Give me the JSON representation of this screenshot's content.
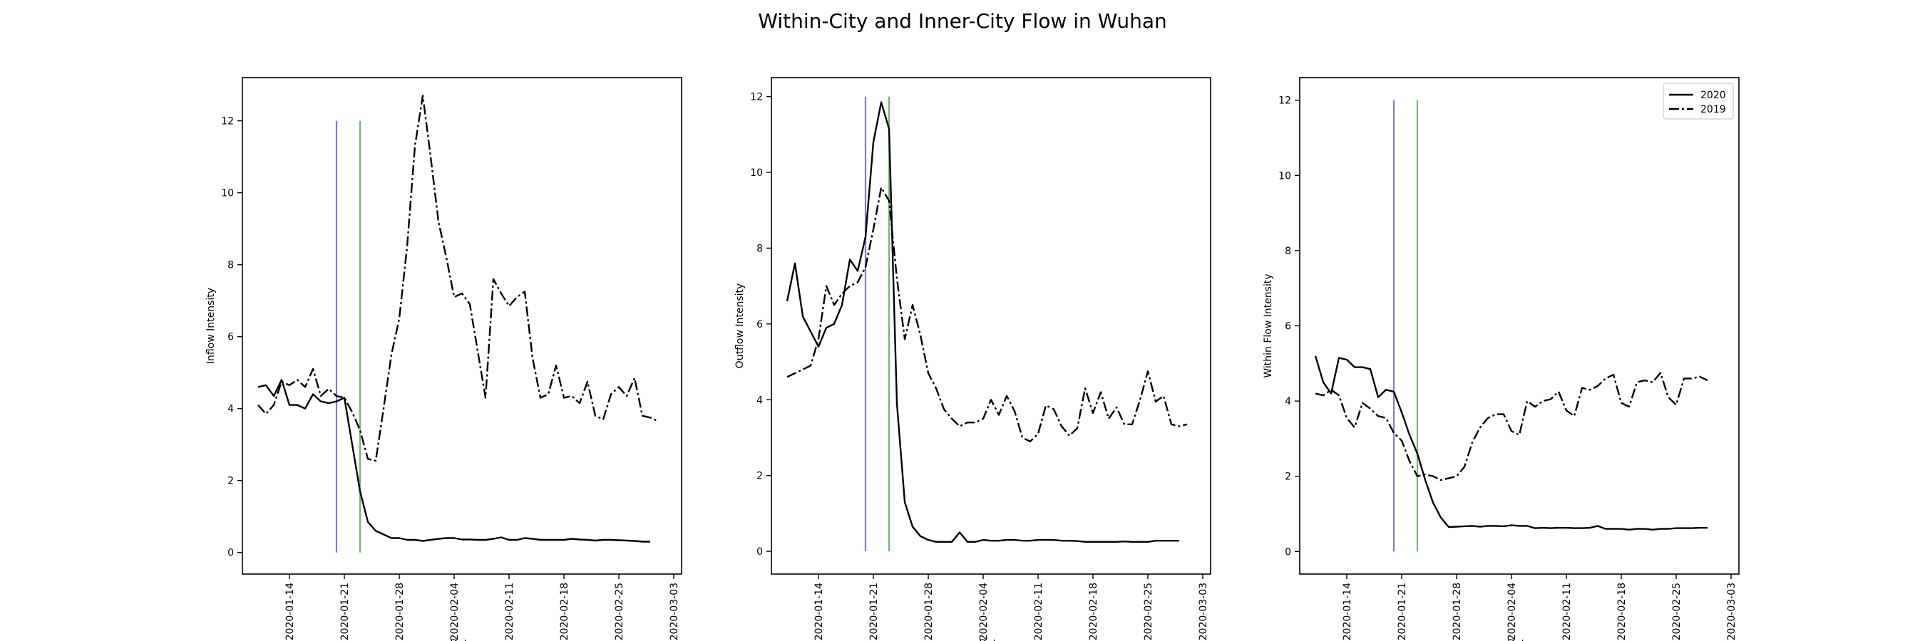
{
  "figure": {
    "title": "Within-City and Inner-City Flow in Wuhan"
  },
  "legend_placement": "top-right of third panel",
  "chart_data": [
    {
      "type": "line",
      "title": "",
      "xlabel": "Date",
      "ylabel": "Inflow Intensity",
      "x_type": "date",
      "xlim": [
        "2020-01-08",
        "2020-03-04"
      ],
      "ylim": [
        -0.6,
        13.2
      ],
      "yticks": [
        0,
        2,
        4,
        6,
        8,
        10,
        12
      ],
      "xticks": [
        "2020-01-14",
        "2020-01-21",
        "2020-01-28",
        "2020-02-04",
        "2020-02-11",
        "2020-02-18",
        "2020-02-25",
        "2020-03-03"
      ],
      "grid": false,
      "vlines": [
        {
          "x": "2020-01-20",
          "ymin": 0,
          "ymax": 12,
          "color": "#7b7be0"
        },
        {
          "x": "2020-01-23",
          "ymin": 0,
          "ymax": 12,
          "color": "#6cbb6c"
        }
      ],
      "series": [
        {
          "name": "2020",
          "style": "solid",
          "start": "2020-01-10",
          "values": [
            4.6,
            4.65,
            4.35,
            4.8,
            4.1,
            4.1,
            4.0,
            4.4,
            4.2,
            4.15,
            4.2,
            4.3,
            3.0,
            1.7,
            0.85,
            0.6,
            0.5,
            0.4,
            0.4,
            0.35,
            0.35,
            0.32,
            0.35,
            0.38,
            0.4,
            0.4,
            0.36,
            0.36,
            0.35,
            0.35,
            0.38,
            0.42,
            0.35,
            0.35,
            0.4,
            0.38,
            0.35,
            0.35,
            0.35,
            0.35,
            0.38,
            0.36,
            0.35,
            0.33,
            0.35,
            0.35,
            0.34,
            0.33,
            0.32,
            0.3,
            0.3
          ]
        },
        {
          "name": "2019",
          "style": "dashdot",
          "start": "2020-01-10",
          "values": [
            4.1,
            3.85,
            4.1,
            4.75,
            4.65,
            4.8,
            4.6,
            5.1,
            4.35,
            4.55,
            4.35,
            4.3,
            3.9,
            3.4,
            2.6,
            2.55,
            4.0,
            5.5,
            6.5,
            8.5,
            11.3,
            12.7,
            11.0,
            9.2,
            8.2,
            7.1,
            7.2,
            6.9,
            5.6,
            4.3,
            7.6,
            7.2,
            6.85,
            7.1,
            7.25,
            5.4,
            4.3,
            4.4,
            5.2,
            4.3,
            4.35,
            4.15,
            4.75,
            3.8,
            3.7,
            4.4,
            4.6,
            4.35,
            4.85,
            3.8,
            3.75,
            3.65
          ]
        }
      ]
    },
    {
      "type": "line",
      "title": "",
      "xlabel": "Date",
      "ylabel": "Outflow Intensity",
      "x_type": "date",
      "xlim": [
        "2020-01-08",
        "2020-03-04"
      ],
      "ylim": [
        -0.6,
        12.5
      ],
      "yticks": [
        0,
        2,
        4,
        6,
        8,
        10,
        12
      ],
      "xticks": [
        "2020-01-14",
        "2020-01-21",
        "2020-01-28",
        "2020-02-04",
        "2020-02-11",
        "2020-02-18",
        "2020-02-25",
        "2020-03-03"
      ],
      "grid": false,
      "vlines": [
        {
          "x": "2020-01-20",
          "ymin": 0,
          "ymax": 12,
          "color": "#7b7be0"
        },
        {
          "x": "2020-01-23",
          "ymin": 0,
          "ymax": 12,
          "color": "#6cbb6c"
        }
      ],
      "series": [
        {
          "name": "2020",
          "style": "solid",
          "start": "2020-01-10",
          "values": [
            6.6,
            7.6,
            6.2,
            5.8,
            5.4,
            5.9,
            6.0,
            6.5,
            7.7,
            7.4,
            8.3,
            10.8,
            11.85,
            11.15,
            3.9,
            1.3,
            0.65,
            0.4,
            0.3,
            0.25,
            0.25,
            0.25,
            0.5,
            0.25,
            0.25,
            0.3,
            0.28,
            0.28,
            0.3,
            0.3,
            0.28,
            0.28,
            0.3,
            0.3,
            0.3,
            0.28,
            0.28,
            0.27,
            0.25,
            0.25,
            0.25,
            0.25,
            0.25,
            0.26,
            0.25,
            0.25,
            0.25,
            0.28,
            0.28,
            0.28,
            0.28
          ]
        },
        {
          "name": "2019",
          "style": "dashdot",
          "start": "2020-01-10",
          "values": [
            4.6,
            4.7,
            4.8,
            4.9,
            5.6,
            7.0,
            6.5,
            6.8,
            7.0,
            7.1,
            7.5,
            8.5,
            9.6,
            9.25,
            7.2,
            5.6,
            6.5,
            5.7,
            4.7,
            4.3,
            3.75,
            3.5,
            3.3,
            3.4,
            3.4,
            3.5,
            4.0,
            3.6,
            4.1,
            3.7,
            3.0,
            2.9,
            3.1,
            3.85,
            3.75,
            3.3,
            3.05,
            3.25,
            4.3,
            3.65,
            4.2,
            3.5,
            3.8,
            3.35,
            3.35,
            4.0,
            4.75,
            3.95,
            4.1,
            3.35,
            3.3,
            3.35
          ]
        }
      ]
    },
    {
      "type": "line",
      "title": "",
      "xlabel": "Date",
      "ylabel": "Within Flow Intensity",
      "x_type": "date",
      "xlim": [
        "2020-01-08",
        "2020-03-04"
      ],
      "ylim": [
        -0.6,
        12.6
      ],
      "yticks": [
        0,
        2,
        4,
        6,
        8,
        10,
        12
      ],
      "xticks": [
        "2020-01-14",
        "2020-01-21",
        "2020-01-28",
        "2020-02-04",
        "2020-02-11",
        "2020-02-18",
        "2020-02-25",
        "2020-03-03"
      ],
      "grid": false,
      "legend": {
        "placement": "upper right",
        "entries": [
          "2020",
          "2019"
        ]
      },
      "vlines": [
        {
          "x": "2020-01-20",
          "ymin": 0,
          "ymax": 12,
          "color": "#7b7be0"
        },
        {
          "x": "2020-01-23",
          "ymin": 0,
          "ymax": 12,
          "color": "#6cbb6c"
        }
      ],
      "series": [
        {
          "name": "2020",
          "style": "solid",
          "start": "2020-01-10",
          "values": [
            5.2,
            4.5,
            4.2,
            5.15,
            5.1,
            4.9,
            4.9,
            4.85,
            4.1,
            4.3,
            4.25,
            3.7,
            3.1,
            2.6,
            1.9,
            1.3,
            0.9,
            0.65,
            0.66,
            0.67,
            0.68,
            0.66,
            0.68,
            0.68,
            0.67,
            0.7,
            0.68,
            0.68,
            0.62,
            0.63,
            0.62,
            0.63,
            0.63,
            0.62,
            0.62,
            0.63,
            0.68,
            0.6,
            0.6,
            0.6,
            0.58,
            0.6,
            0.6,
            0.58,
            0.6,
            0.6,
            0.62,
            0.62,
            0.62,
            0.63,
            0.63
          ]
        },
        {
          "name": "2019",
          "style": "dashdot",
          "start": "2020-01-10",
          "values": [
            4.2,
            4.15,
            4.3,
            4.15,
            3.55,
            3.3,
            3.95,
            3.8,
            3.6,
            3.55,
            3.15,
            2.95,
            2.4,
            2.0,
            2.05,
            2.0,
            1.9,
            1.95,
            2.0,
            2.25,
            2.9,
            3.3,
            3.55,
            3.65,
            3.65,
            3.2,
            3.1,
            4.0,
            3.85,
            4.0,
            4.05,
            4.25,
            3.75,
            3.6,
            4.35,
            4.3,
            4.4,
            4.6,
            4.7,
            3.95,
            3.85,
            4.5,
            4.55,
            4.5,
            4.75,
            4.1,
            3.9,
            4.6,
            4.6,
            4.65,
            4.55
          ]
        }
      ]
    }
  ]
}
